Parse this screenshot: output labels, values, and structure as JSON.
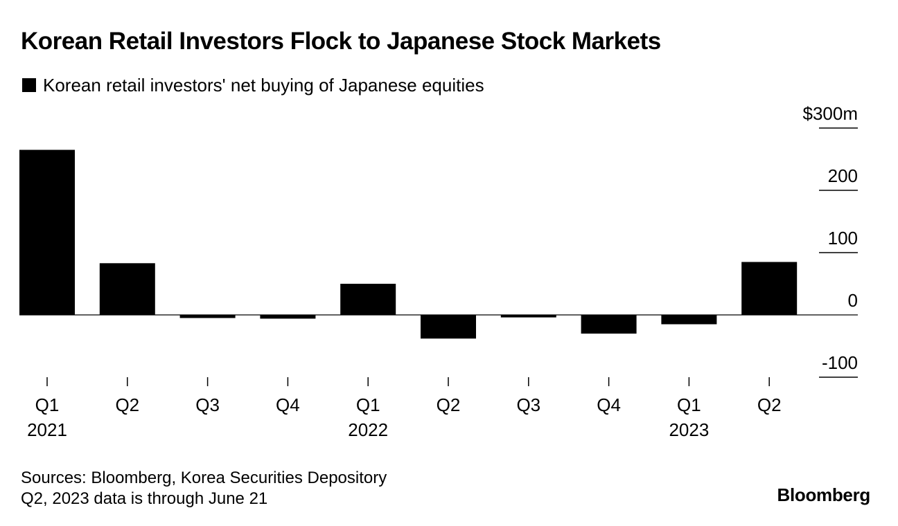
{
  "title": "Korean Retail Investors Flock to Japanese Stock Markets",
  "chart_data": {
    "type": "bar",
    "title": "Korean Retail Investors Flock to Japanese Stock Markets",
    "legend": [
      {
        "label": "Korean retail investors' net buying of Japanese equities",
        "color": "#000000"
      }
    ],
    "legend_position": "top-left",
    "categories": [
      "Q1",
      "Q2",
      "Q3",
      "Q4",
      "Q1",
      "Q2",
      "Q3",
      "Q4",
      "Q1",
      "Q2"
    ],
    "year_labels": [
      "2021",
      "",
      "",
      "",
      "2022",
      "",
      "",
      "",
      "2023",
      ""
    ],
    "series": [
      {
        "name": "Korean retail investors' net buying of Japanese equities",
        "color": "#000000",
        "values": [
          265,
          83,
          -5,
          -6,
          50,
          -38,
          -4,
          -30,
          -15,
          85
        ]
      }
    ],
    "y_axis": {
      "position": "right",
      "ylim": [
        -100,
        300
      ],
      "ticks": [
        300,
        200,
        100,
        0,
        -100
      ],
      "tick_labels": [
        "$300m",
        "200",
        "100",
        "0",
        "-100"
      ]
    },
    "xlabel": "",
    "ylabel": "",
    "grid": false
  },
  "footer": {
    "sources": "Sources: Bloomberg, Korea Securities Depository",
    "note": "Q2, 2023 data is through June 21"
  },
  "brand": "Bloomberg"
}
